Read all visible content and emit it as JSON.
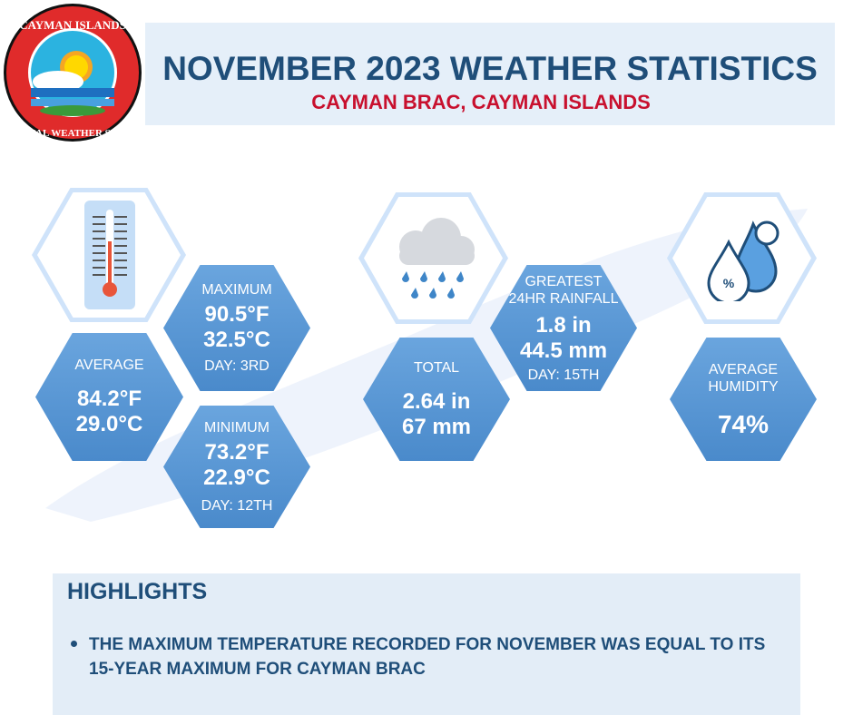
{
  "header": {
    "title": "NOVEMBER 2023 WEATHER STATISTICS",
    "subtitle": "CAYMAN BRAC, CAYMAN ISLANDS",
    "logo_text": "CAYMAN ISLANDS NATIONAL WEATHER SERVICE"
  },
  "temperature": {
    "icon": "thermometer-icon",
    "average": {
      "label": "AVERAGE",
      "f": "84.2°F",
      "c": "29.0°C"
    },
    "maximum": {
      "label": "MAXIMUM",
      "f": "90.5°F",
      "c": "32.5°C",
      "day": "DAY: 3RD"
    },
    "minimum": {
      "label": "MINIMUM",
      "f": "73.2°F",
      "c": "22.9°C",
      "day": "DAY: 12TH"
    }
  },
  "rainfall": {
    "icon": "rain-cloud-icon",
    "total": {
      "label": "TOTAL",
      "in": "2.64 in",
      "mm": "67 mm"
    },
    "greatest": {
      "label1": "GREATEST",
      "label2": "24HR RAINFALL",
      "in": "1.8 in",
      "mm": "44.5 mm",
      "day": "DAY: 15TH"
    }
  },
  "humidity": {
    "icon": "humidity-drops-icon",
    "label1": "AVERAGE",
    "label2": "HUMIDITY",
    "value": "74%"
  },
  "highlights": {
    "title": "HIGHLIGHTS",
    "items": [
      "THE MAXIMUM TEMPERATURE RECORDED FOR NOVEMBER WAS EQUAL TO ITS 15-YEAR MAXIMUM FOR CAYMAN BRAC"
    ]
  },
  "colors": {
    "title": "#1f4e79",
    "subtitle": "#c8102e",
    "hex": "#5a98d6"
  }
}
